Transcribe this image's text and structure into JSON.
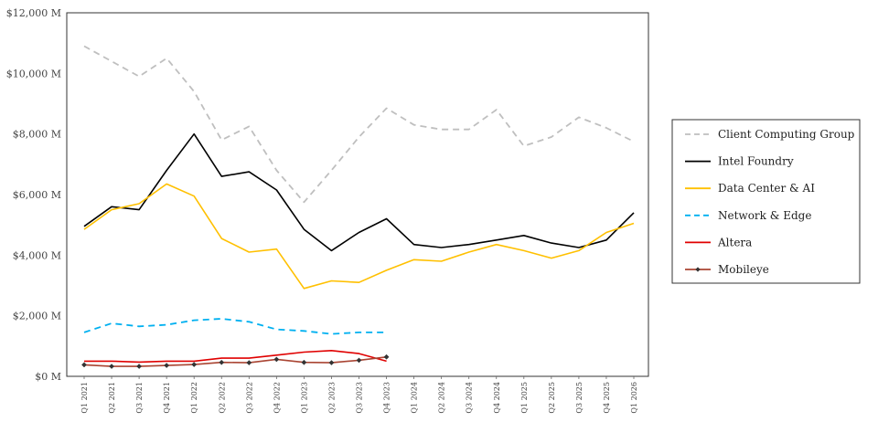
{
  "chart_data": {
    "type": "line",
    "title": "",
    "xlabel": "",
    "ylabel": "",
    "categories": [
      "Q1 2021",
      "Q2 2021",
      "Q3 2021",
      "Q4 2021",
      "Q1 2022",
      "Q2 2022",
      "Q3 2022",
      "Q4 2022",
      "Q1 2023",
      "Q2 2023",
      "Q3 2023",
      "Q4 2023",
      "Q1 2024",
      "Q2 2024",
      "Q3 2024",
      "Q4 2024",
      "Q1 2025",
      "Q2 2025",
      "Q3 2025",
      "Q4 2025",
      "Q1 2026"
    ],
    "ylim": [
      0,
      12000
    ],
    "yticks": [
      0,
      2000,
      4000,
      6000,
      8000,
      10000,
      12000
    ],
    "ytick_labels": [
      "$0 M",
      "$2,000 M",
      "$4,000 M",
      "$6,000 M",
      "$8,000 M",
      "$10,000 M",
      "$12,000 M"
    ],
    "grid": false,
    "legend_position": "right",
    "series": [
      {
        "name": "Client Computing Group",
        "color": "#bfbfbf",
        "dash": "dashed",
        "values": [
          10900,
          10400,
          9900,
          10500,
          9400,
          7800,
          8250,
          6800,
          5750,
          6800,
          7900,
          8850,
          8300,
          8150,
          8150,
          8800,
          7600,
          7900,
          8550,
          8200,
          7750
        ]
      },
      {
        "name": "Intel Foundry",
        "color": "#000000",
        "dash": "solid",
        "values": [
          4950,
          5600,
          5500,
          6800,
          8000,
          6600,
          6750,
          6150,
          4850,
          4150,
          4750,
          5200,
          4350,
          4250,
          4350,
          4500,
          4650,
          4400,
          4250,
          4500,
          5400
        ]
      },
      {
        "name": "Data Center & AI",
        "color": "#ffc000",
        "dash": "solid",
        "values": [
          4850,
          5500,
          5700,
          6350,
          5950,
          4550,
          4100,
          4200,
          2900,
          3150,
          3100,
          3500,
          3850,
          3800,
          4100,
          4350,
          4150,
          3900,
          4150,
          4750,
          5050
        ]
      },
      {
        "name": "Network & Edge",
        "color": "#00b0f0",
        "dash": "dashed",
        "values": [
          1450,
          1750,
          1650,
          1700,
          1850,
          1900,
          1800,
          1550,
          1500,
          1400,
          1450,
          1450,
          null,
          null,
          null,
          null,
          null,
          null,
          null,
          null,
          null
        ]
      },
      {
        "name": "Altera",
        "color": "#e00000",
        "dash": "solid",
        "values": [
          500,
          500,
          470,
          500,
          500,
          600,
          600,
          700,
          800,
          850,
          750,
          500,
          null,
          null,
          null,
          null,
          null,
          null,
          null,
          null,
          null
        ]
      },
      {
        "name": "Mobileye",
        "color": "#a94432",
        "dash": "solid",
        "marker": "diamond",
        "values": [
          380,
          330,
          330,
          360,
          390,
          460,
          450,
          560,
          460,
          450,
          530,
          640,
          null,
          null,
          null,
          null,
          null,
          null,
          null,
          null,
          null
        ]
      }
    ]
  }
}
